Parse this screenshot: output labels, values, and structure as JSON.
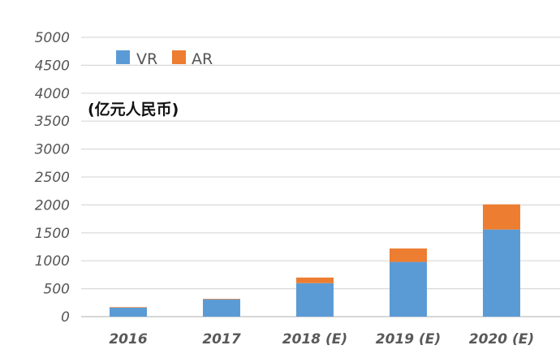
{
  "chart_data": {
    "type": "bar",
    "stacked": true,
    "unit_label": "(亿元人民币)",
    "categories": [
      "2016",
      "2017",
      "2018 (E)",
      "2019 (E)",
      "2020 (E)"
    ],
    "series": [
      {
        "name": "VR",
        "color": "#5b9bd5",
        "values": [
          160,
          310,
          600,
          980,
          1560
        ]
      },
      {
        "name": "AR",
        "color": "#ed7d31",
        "values": [
          10,
          10,
          100,
          240,
          450
        ]
      }
    ],
    "yticks": [
      "0",
      "500",
      "1000",
      "1500",
      "2000",
      "2500",
      "3000",
      "3500",
      "4000",
      "4500",
      "5000"
    ],
    "ylim": [
      0,
      5000
    ],
    "grid": true,
    "legend_position": "top-left"
  }
}
